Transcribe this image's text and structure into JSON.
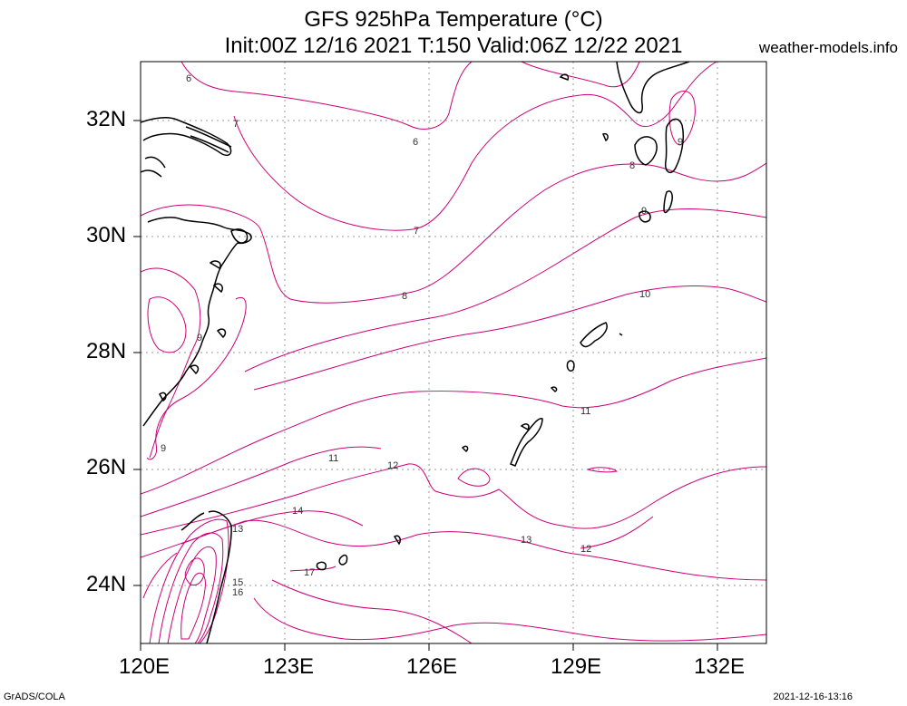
{
  "title": {
    "line1": "GFS 925hPa Temperature (°C)",
    "line2": "Init:00Z 12/16 2021 T:150 Valid:06Z 12/22 2021"
  },
  "site": "weather-models.info",
  "footer": {
    "left": "GrADS/COLA",
    "right": "2021-12-16-13:16"
  },
  "axes": {
    "lat_labels": [
      "32N",
      "30N",
      "28N",
      "26N",
      "24N"
    ],
    "lon_labels": [
      "120E",
      "123E",
      "126E",
      "129E",
      "132E"
    ]
  },
  "contour_labels": [
    "6",
    "7",
    "6",
    "8",
    "7",
    "8",
    "9",
    "9",
    "10",
    "9",
    "11",
    "9",
    "11",
    "12",
    "12",
    "13",
    "14",
    "13",
    "17",
    "15",
    "16"
  ],
  "colors": {
    "contour": "#cc0077",
    "coast": "#000000",
    "grid": "#999999"
  }
}
